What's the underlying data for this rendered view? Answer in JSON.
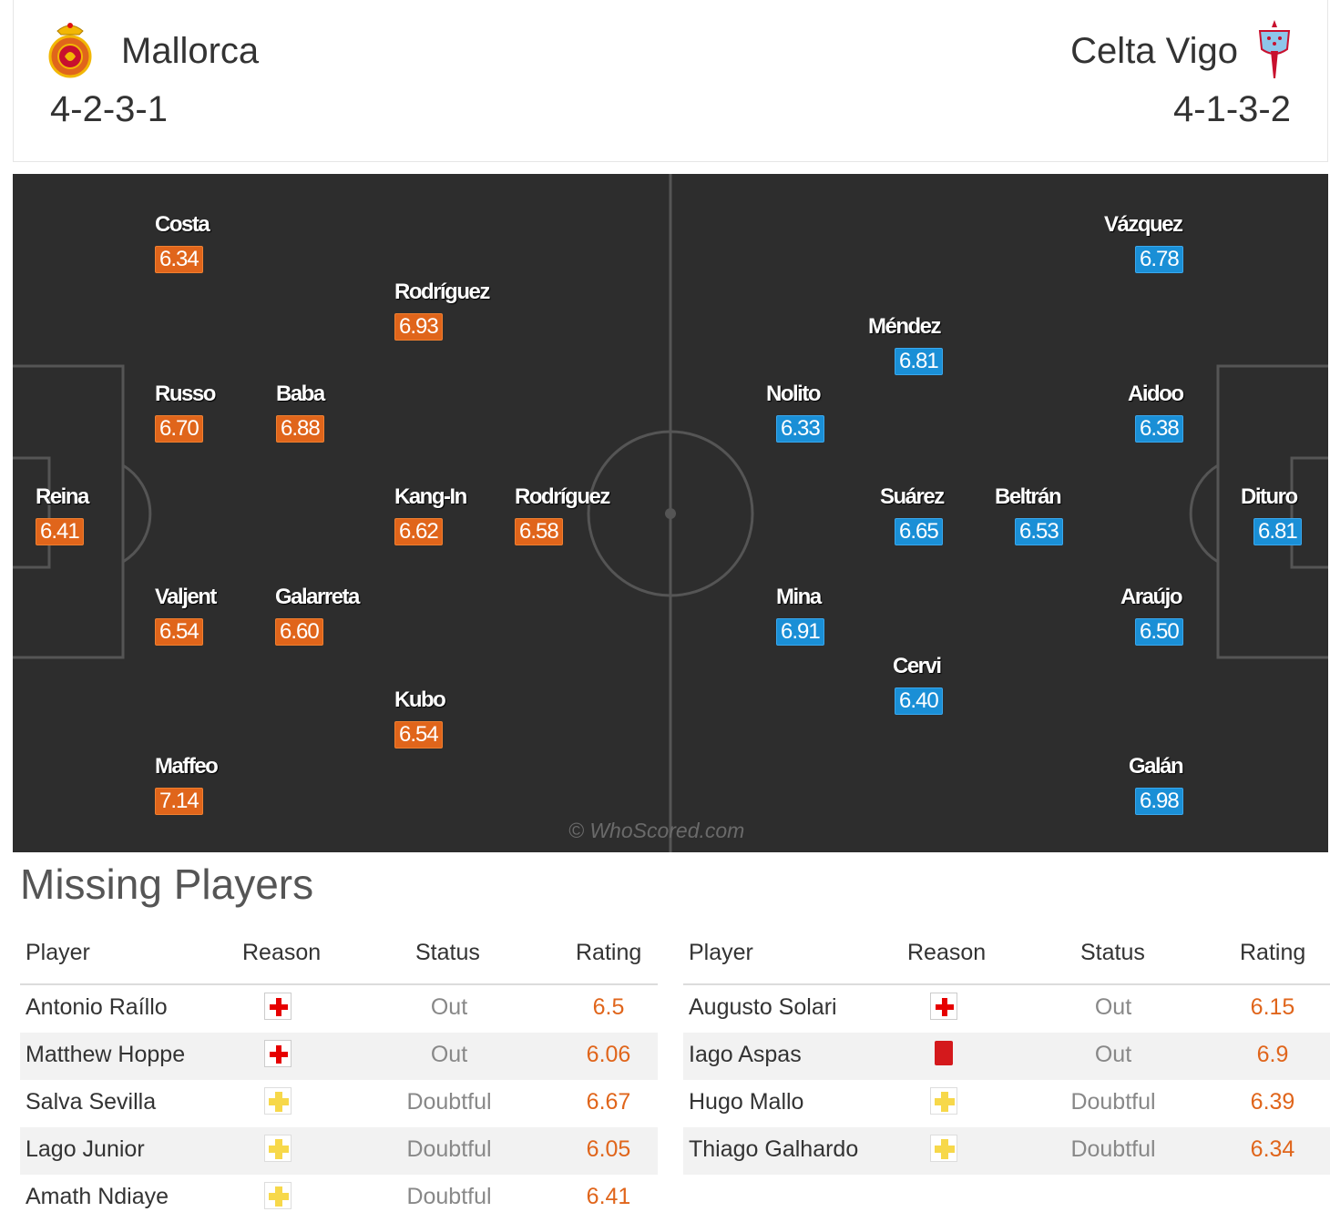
{
  "header": {
    "home": {
      "name": "Mallorca",
      "formation": "4-2-3-1",
      "crest_icon": "mallorca-crest-icon"
    },
    "away": {
      "name": "Celta Vigo",
      "formation": "4-1-3-2",
      "crest_icon": "celta-crest-icon"
    }
  },
  "colors": {
    "home_rating": "#e0651b",
    "away_rating": "#1a8fd6",
    "pitch": "#2d2d2d",
    "missing_rating": "#e0651b"
  },
  "pitch": {
    "watermark": "© WhoScored.com",
    "home_players": [
      {
        "name": "Costa",
        "rating": "6.34"
      },
      {
        "name": "Rodríguez",
        "rating": "6.93"
      },
      {
        "name": "Russo",
        "rating": "6.70"
      },
      {
        "name": "Baba",
        "rating": "6.88"
      },
      {
        "name": "Reina",
        "rating": "6.41"
      },
      {
        "name": "Kang-In",
        "rating": "6.62"
      },
      {
        "name": "Rodríguez",
        "rating": "6.58"
      },
      {
        "name": "Valjent",
        "rating": "6.54"
      },
      {
        "name": "Galarreta",
        "rating": "6.60"
      },
      {
        "name": "Kubo",
        "rating": "6.54"
      },
      {
        "name": "Maffeo",
        "rating": "7.14"
      }
    ],
    "away_players": [
      {
        "name": "Vázquez",
        "rating": "6.78"
      },
      {
        "name": "Méndez",
        "rating": "6.81"
      },
      {
        "name": "Nolito",
        "rating": "6.33"
      },
      {
        "name": "Aidoo",
        "rating": "6.38"
      },
      {
        "name": "Suárez",
        "rating": "6.65"
      },
      {
        "name": "Beltrán",
        "rating": "6.53"
      },
      {
        "name": "Dituro",
        "rating": "6.81"
      },
      {
        "name": "Mina",
        "rating": "6.91"
      },
      {
        "name": "Araújo",
        "rating": "6.50"
      },
      {
        "name": "Cervi",
        "rating": "6.40"
      },
      {
        "name": "Galán",
        "rating": "6.98"
      }
    ]
  },
  "missing": {
    "title": "Missing Players",
    "columns": [
      "Player",
      "Reason",
      "Status",
      "Rating"
    ],
    "home": [
      {
        "player": "Antonio Raíllo",
        "reason": "injury-icon",
        "status": "Out",
        "rating": "6.5"
      },
      {
        "player": "Matthew Hoppe",
        "reason": "injury-icon",
        "status": "Out",
        "rating": "6.06"
      },
      {
        "player": "Salva Sevilla",
        "reason": "doubtful-icon",
        "status": "Doubtful",
        "rating": "6.67"
      },
      {
        "player": "Lago Junior",
        "reason": "doubtful-icon",
        "status": "Doubtful",
        "rating": "6.05"
      },
      {
        "player": "Amath Ndiaye",
        "reason": "doubtful-icon",
        "status": "Doubtful",
        "rating": "6.41"
      }
    ],
    "away": [
      {
        "player": "Augusto Solari",
        "reason": "injury-icon",
        "status": "Out",
        "rating": "6.15"
      },
      {
        "player": "Iago Aspas",
        "reason": "red-card-icon",
        "status": "Out",
        "rating": "6.9"
      },
      {
        "player": "Hugo Mallo",
        "reason": "doubtful-icon",
        "status": "Doubtful",
        "rating": "6.39"
      },
      {
        "player": "Thiago Galhardo",
        "reason": "doubtful-icon",
        "status": "Doubtful",
        "rating": "6.34"
      }
    ]
  }
}
